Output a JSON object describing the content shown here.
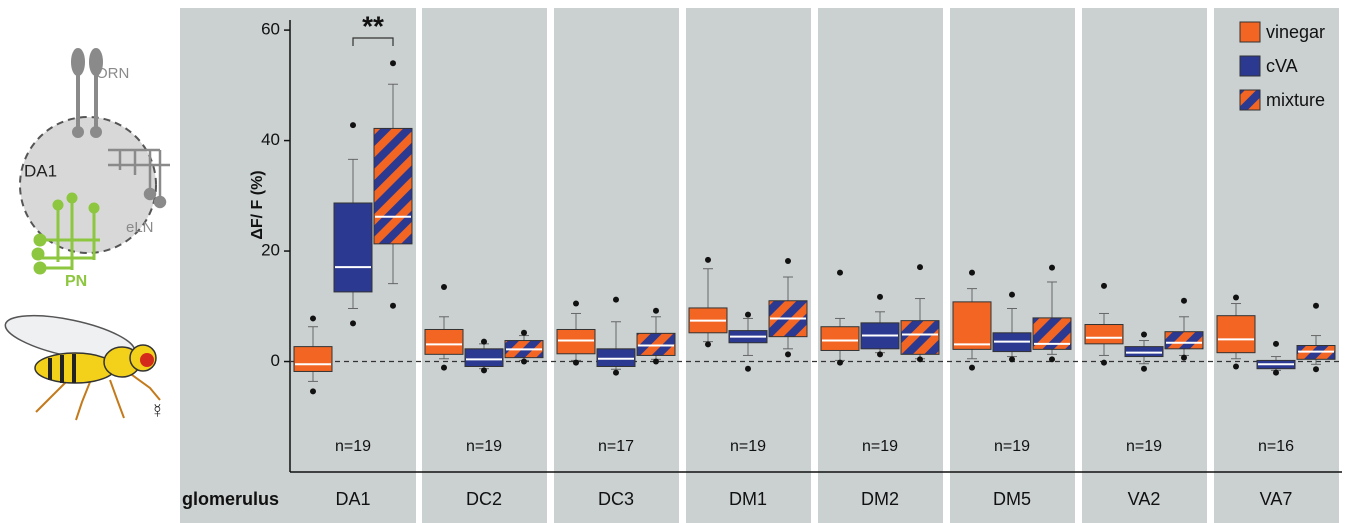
{
  "schematic": {
    "orn": "ORN",
    "glomerulus": "DA1",
    "eln": "eLN",
    "pn": "PN",
    "sex": "☿"
  },
  "chart_data": {
    "type": "box",
    "y_label": "ΔF/ F (%)",
    "group_label": "glomerulus",
    "categories": [
      "DA1",
      "DC2",
      "DC3",
      "DM1",
      "DM2",
      "DM5",
      "VA2",
      "VA7"
    ],
    "n_labels": [
      "n=19",
      "n=19",
      "n=17",
      "n=19",
      "n=19",
      "n=19",
      "n=19",
      "n=16"
    ],
    "ylim": [
      -20,
      64
    ],
    "yticks": [
      0,
      20,
      40,
      60
    ],
    "zero_line": true,
    "legend": "top-right",
    "significance": {
      "label": "**",
      "category": 0,
      "between": [
        1,
        2
      ]
    },
    "series": [
      {
        "name": "vinegar",
        "color": "#f26522",
        "whisker_low": [
          -3.6,
          0.5,
          0.2,
          3.6,
          0.2,
          0.5,
          1.1,
          0.5
        ],
        "q1": [
          -1.8,
          1.3,
          1.4,
          5.2,
          2.0,
          2.2,
          3.2,
          1.6
        ],
        "median": [
          -0.5,
          3.1,
          3.8,
          7.4,
          3.8,
          3.1,
          4.3,
          4.0
        ],
        "q3": [
          2.7,
          5.8,
          5.8,
          9.7,
          6.3,
          10.8,
          6.7,
          8.3
        ],
        "whisker_high": [
          6.3,
          8.1,
          8.7,
          16.8,
          7.8,
          13.2,
          8.7,
          10.5
        ],
        "min": [
          -5.4,
          -1.1,
          -0.2,
          3.1,
          -0.2,
          -1.1,
          -0.2,
          -0.9
        ],
        "max": [
          7.8,
          13.5,
          10.5,
          18.4,
          16.1,
          16.1,
          13.7,
          11.6
        ]
      },
      {
        "name": "cVA",
        "color": "#2b3990",
        "whisker_low": [
          9.6,
          -1.3,
          -1.4,
          1.1,
          1.6,
          0.9,
          -0.4,
          -1.6
        ],
        "q1": [
          12.6,
          -0.9,
          -0.9,
          3.4,
          2.3,
          1.8,
          0.9,
          -1.3
        ],
        "median": [
          17.1,
          0.4,
          0.5,
          4.5,
          4.7,
          3.6,
          1.6,
          -0.5
        ],
        "q3": [
          28.7,
          2.3,
          2.3,
          5.6,
          7.0,
          5.2,
          2.7,
          0.2
        ],
        "whisker_high": [
          36.6,
          3.2,
          7.2,
          7.8,
          9.0,
          9.6,
          3.8,
          0.9
        ],
        "min": [
          6.9,
          -1.6,
          -2.0,
          -1.3,
          1.3,
          0.4,
          -1.3,
          -2.0
        ],
        "max": [
          42.8,
          3.6,
          11.2,
          8.5,
          11.7,
          12.1,
          4.9,
          3.2
        ]
      },
      {
        "name": "mixture",
        "color": "#f26522",
        "stripe_color": "#2b3990",
        "whisker_low": [
          14.1,
          0.2,
          0.4,
          2.3,
          0.5,
          1.3,
          1.1,
          -0.5
        ],
        "q1": [
          21.3,
          0.7,
          1.1,
          4.5,
          1.3,
          2.2,
          2.3,
          0.4
        ],
        "median": [
          26.2,
          2.2,
          2.9,
          7.8,
          4.9,
          3.2,
          3.4,
          1.8
        ],
        "q3": [
          42.2,
          3.8,
          5.1,
          11.0,
          7.4,
          7.9,
          5.4,
          2.9
        ],
        "whisker_high": [
          50.2,
          4.7,
          8.1,
          15.3,
          11.4,
          14.4,
          8.1,
          4.7
        ],
        "min": [
          10.1,
          0.0,
          0.0,
          1.3,
          0.4,
          0.4,
          0.7,
          -1.4
        ],
        "max": [
          54.0,
          5.2,
          9.2,
          18.2,
          17.1,
          17.0,
          11.0,
          10.1
        ]
      }
    ]
  }
}
